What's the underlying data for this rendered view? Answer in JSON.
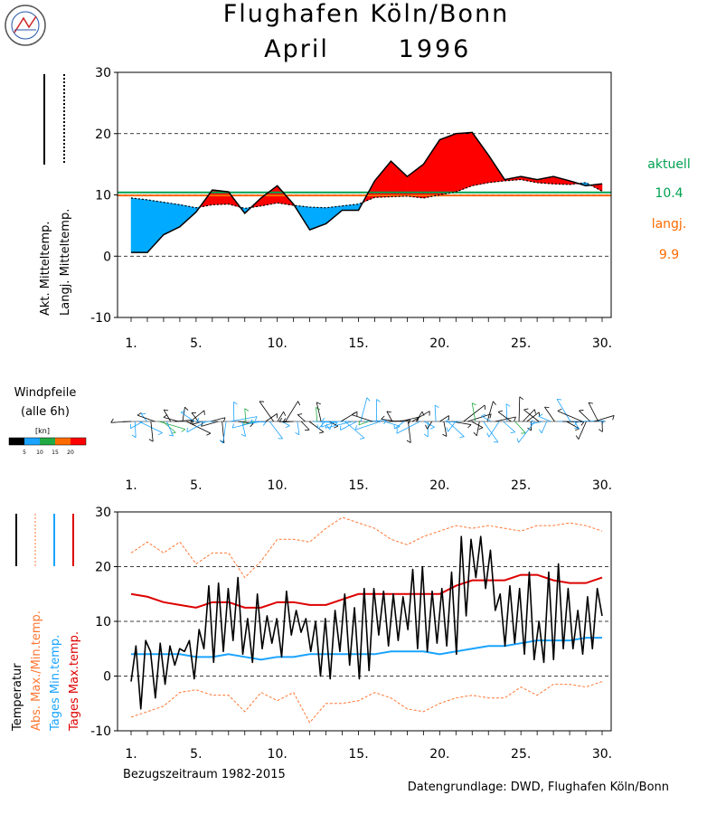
{
  "header": {
    "title": "Flughafen Köln/Bonn",
    "month": "April",
    "year": "1996"
  },
  "panel1": {
    "legend_actual": "Akt. Mitteltemp.",
    "legend_longterm": "Langj. Mitteltemp.",
    "aktuell_label": "aktuell",
    "aktuell_value": "10.4",
    "langj_label": "langj.",
    "langj_value": "9.9"
  },
  "panel2": {
    "title_line1": "Windpfeile",
    "title_line2": "(alle 6h)",
    "unit": "[kn]",
    "scale_labels": [
      "5",
      "10",
      "15",
      "20"
    ]
  },
  "panel3": {
    "legend_temp": "Temperatur",
    "legend_absmaxmin": "Abs. Max./Min.temp.",
    "legend_tagesmin": "Tages Min.temp.",
    "legend_tagesmax": "Tages Max.temp.",
    "reference_period": "Bezugszeitraum 1982-2015"
  },
  "footer": {
    "source": "Datengrundlage: DWD, Flughafen Köln/Bonn"
  },
  "colors": {
    "warmer": "#ff0000",
    "colder": "#00aaff",
    "aktuell": "#00a050",
    "langj": "#ff6a00",
    "abs_maxmin": "#ff7733",
    "tages_min": "#1aa3ff",
    "tages_max": "#dd0000"
  },
  "chart_data": [
    {
      "type": "area",
      "title": "Flughafen Köln/Bonn April 1996",
      "ylim": [
        -10,
        30
      ],
      "yticks": [
        -10,
        0,
        10,
        20,
        30
      ],
      "xticks": [
        "1.",
        "5.",
        "10.",
        "15.",
        "20.",
        "25.",
        "30."
      ],
      "xtick_days": [
        1,
        5,
        10,
        15,
        20,
        25,
        30
      ],
      "reference_lines": [
        {
          "name": "aktuell",
          "value": 10.4
        },
        {
          "name": "langj.",
          "value": 9.9
        }
      ],
      "x": [
        1,
        2,
        3,
        4,
        5,
        6,
        7,
        8,
        9,
        10,
        11,
        12,
        13,
        14,
        15,
        16,
        17,
        18,
        19,
        20,
        21,
        22,
        23,
        24,
        25,
        26,
        27,
        28,
        29,
        30
      ],
      "series": [
        {
          "name": "Akt. Mitteltemp.",
          "values": [
            0.6,
            0.6,
            3.5,
            4.8,
            7.2,
            10.8,
            10.5,
            7.0,
            9.5,
            11.5,
            8.5,
            4.3,
            5.3,
            7.5,
            7.5,
            12.3,
            15.5,
            13.0,
            15.0,
            19.0,
            20.0,
            20.2,
            16.5,
            12.5,
            13.0,
            12.5,
            13.0,
            12.3,
            11.5,
            11.8
          ]
        },
        {
          "name": "Langj. Mitteltemp.",
          "values": [
            9.5,
            9.2,
            8.8,
            8.4,
            7.9,
            8.4,
            8.5,
            7.8,
            8.2,
            8.7,
            8.3,
            8.0,
            7.9,
            8.2,
            8.5,
            9.6,
            9.7,
            9.8,
            9.5,
            10.0,
            10.5,
            11.5,
            12.0,
            12.3,
            12.5,
            12.0,
            11.8,
            11.7,
            12.0,
            10.6
          ]
        }
      ]
    },
    {
      "type": "line",
      "ylim": [
        -10,
        30
      ],
      "yticks": [
        -10,
        0,
        10,
        20,
        30
      ],
      "xticks": [
        "1.",
        "5.",
        "10.",
        "15.",
        "20.",
        "25.",
        "30."
      ],
      "xtick_days": [
        1,
        5,
        10,
        15,
        20,
        25,
        30
      ],
      "temperature_6h": [
        -1.0,
        5.5,
        -6.0,
        6.5,
        4.5,
        -4.0,
        6.0,
        -1.5,
        5.5,
        2.0,
        5.0,
        4.5,
        6.5,
        -0.5,
        8.5,
        5.0,
        16.5,
        2.5,
        17.0,
        4.5,
        16.0,
        6.5,
        18.0,
        4.0,
        10.5,
        2.5,
        15.0,
        5.0,
        11.0,
        6.0,
        10.5,
        3.5,
        15.5,
        7.5,
        12.0,
        8.0,
        10.5,
        4.5,
        10.0,
        0.0,
        10.5,
        -0.5,
        12.0,
        4.5,
        15.0,
        2.0,
        12.5,
        -0.5,
        16.0,
        1.0,
        16.0,
        7.5,
        15.5,
        5.5,
        15.0,
        6.5,
        14.5,
        8.5,
        19.5,
        5.0,
        20.0,
        4.5,
        15.5,
        6.0,
        16.0,
        5.5,
        19.0,
        4.0,
        25.5,
        11.0,
        25.0,
        18.0,
        25.5,
        16.0,
        23.0,
        12.0,
        15.0,
        5.5,
        16.5,
        6.0,
        16.0,
        4.0,
        19.0,
        3.0,
        10.0,
        2.5,
        19.0,
        3.0,
        20.5,
        5.0,
        16.0,
        5.0,
        12.0,
        4.0,
        14.5,
        5.0,
        16.0,
        11.0
      ],
      "series": [
        {
          "name": "Abs. Max.temp.",
          "values": [
            22.5,
            24.5,
            22.5,
            24.5,
            20.5,
            22.5,
            22.5,
            18.0,
            21.0,
            25.0,
            25.0,
            24.5,
            27.0,
            29.0,
            28.0,
            27.0,
            25.0,
            24.0,
            25.5,
            26.5,
            27.5,
            27.0,
            27.5,
            27.0,
            26.5,
            27.5,
            27.5,
            28.0,
            27.5,
            26.5
          ]
        },
        {
          "name": "Abs. Min.temp.",
          "values": [
            -7.5,
            -6.5,
            -5.5,
            -3.0,
            -2.5,
            -3.5,
            -3.5,
            -6.5,
            -3.0,
            -4.5,
            -3.0,
            -8.5,
            -5.0,
            -5.0,
            -4.5,
            -3.0,
            -4.0,
            -6.0,
            -6.5,
            -5.0,
            -4.0,
            -3.5,
            -4.0,
            -4.0,
            -2.0,
            -3.5,
            -1.5,
            -1.5,
            -2.0,
            -1.0
          ]
        },
        {
          "name": "Tages Max.temp.",
          "values": [
            15.0,
            14.5,
            13.5,
            13.0,
            12.5,
            13.5,
            13.5,
            12.5,
            12.5,
            13.5,
            13.5,
            13.0,
            13.0,
            14.0,
            15.0,
            15.0,
            15.0,
            15.0,
            15.0,
            15.0,
            16.5,
            17.5,
            17.5,
            17.5,
            18.5,
            18.5,
            17.5,
            17.0,
            17.0,
            18.0
          ]
        },
        {
          "name": "Tages Min.temp.",
          "values": [
            4.0,
            4.0,
            4.0,
            4.0,
            3.5,
            3.5,
            4.0,
            3.5,
            3.0,
            3.5,
            3.5,
            4.0,
            4.0,
            4.0,
            4.0,
            4.0,
            4.5,
            4.5,
            4.5,
            4.0,
            4.5,
            5.0,
            5.5,
            5.5,
            6.0,
            6.5,
            6.5,
            6.5,
            7.0,
            7.0
          ]
        }
      ]
    }
  ]
}
